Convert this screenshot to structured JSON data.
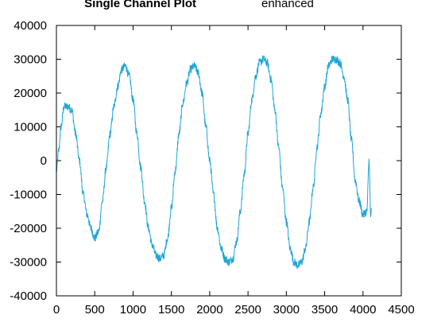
{
  "chart_data": {
    "type": "line",
    "title": "Single Channel Plot",
    "subtitle": "enhanced",
    "xlabel": "",
    "ylabel": "",
    "xlim": [
      0,
      4500
    ],
    "ylim": [
      -40000,
      40000
    ],
    "x_ticks": [
      0,
      500,
      1000,
      1500,
      2000,
      2500,
      3000,
      3500,
      4000,
      4500
    ],
    "y_ticks": [
      40000,
      30000,
      20000,
      10000,
      0,
      -10000,
      -20000,
      -30000,
      -40000
    ],
    "grid": false,
    "legend": "none",
    "line_color": "#1fa6d8",
    "series": [
      {
        "x": [
          0,
          30,
          60,
          100,
          150,
          200,
          250,
          300,
          350,
          400,
          450,
          500,
          550,
          600,
          650,
          700,
          750,
          800,
          850,
          900,
          950,
          1000,
          1050,
          1100,
          1150,
          1200,
          1250,
          1300,
          1350,
          1400,
          1450,
          1500,
          1550,
          1600,
          1650,
          1700,
          1750,
          1800,
          1850,
          1900,
          1950,
          2000,
          2050,
          2100,
          2150,
          2200,
          2250,
          2300,
          2350,
          2400,
          2450,
          2500,
          2550,
          2600,
          2650,
          2700,
          2750,
          2800,
          2850,
          2900,
          2950,
          3000,
          3050,
          3100,
          3150,
          3200,
          3250,
          3300,
          3350,
          3400,
          3450,
          3500,
          3550,
          3600,
          3650,
          3700,
          3750,
          3800,
          3850,
          3900,
          3950,
          4000,
          4050,
          4080,
          4100,
          4110
        ],
        "values": [
          -3000,
          3000,
          10000,
          16000,
          16000,
          15000,
          8000,
          0,
          -10000,
          -16000,
          -20000,
          -23000,
          -21000,
          -12000,
          -2000,
          8000,
          16000,
          22000,
          27000,
          28000,
          25000,
          18000,
          8000,
          -2000,
          -12000,
          -20000,
          -25000,
          -28000,
          -29000,
          -28000,
          -23000,
          -14000,
          -3000,
          8000,
          17000,
          23000,
          27000,
          28000,
          26000,
          20000,
          10000,
          0,
          -10000,
          -20000,
          -26000,
          -29000,
          -30000,
          -29000,
          -24000,
          -15000,
          -4000,
          8000,
          18000,
          25000,
          29000,
          30000,
          29000,
          24000,
          15000,
          4000,
          -8000,
          -18000,
          -26000,
          -30000,
          -31000,
          -30000,
          -26000,
          -18000,
          -8000,
          4000,
          14000,
          22000,
          28000,
          30000,
          30000,
          29000,
          25000,
          18000,
          6000,
          -6000,
          -12000,
          -16000,
          -15000,
          0,
          -17000,
          -14000
        ]
      }
    ]
  }
}
